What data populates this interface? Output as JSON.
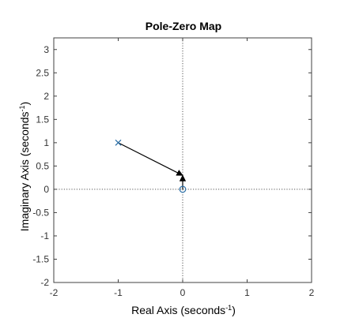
{
  "chart_data": {
    "type": "scatter",
    "title": "Pole-Zero Map",
    "xlabel": "Real Axis (seconds",
    "xlabel_sup": "-1",
    "xlabel_tail": ")",
    "ylabel": "Imaginary Axis (seconds",
    "ylabel_sup": "-1",
    "ylabel_tail": ")",
    "xlim": [
      -2,
      2
    ],
    "ylim": [
      -2,
      3.25
    ],
    "xticks": [
      -2,
      -1,
      0,
      1,
      2
    ],
    "yticks": [
      -2,
      -1.5,
      -1,
      -0.5,
      0,
      0.5,
      1,
      1.5,
      2,
      2.5,
      3
    ],
    "x_tick_labels": [
      "-2",
      "-1",
      "0",
      "1",
      "2"
    ],
    "y_tick_labels": [
      "-2",
      "-1.5",
      "-1",
      "-0.5",
      "0",
      "0.5",
      "1",
      "1.5",
      "2",
      "2.5",
      "3"
    ],
    "grid": false,
    "series": [
      {
        "marker": "x",
        "points": [
          {
            "x": -1,
            "y": 1
          }
        ]
      },
      {
        "marker": "o",
        "points": [
          {
            "x": 0,
            "y": 0
          }
        ]
      }
    ],
    "annotations": [
      {
        "type": "arrow",
        "from": [
          -1,
          1
        ],
        "to": [
          0,
          0.3
        ]
      },
      {
        "type": "arrow",
        "from": [
          0,
          0
        ],
        "to": [
          0,
          0.3
        ]
      }
    ],
    "colors": {
      "marker": "#2a6ea6",
      "axes": "#404040",
      "arrow": "#000000"
    }
  }
}
